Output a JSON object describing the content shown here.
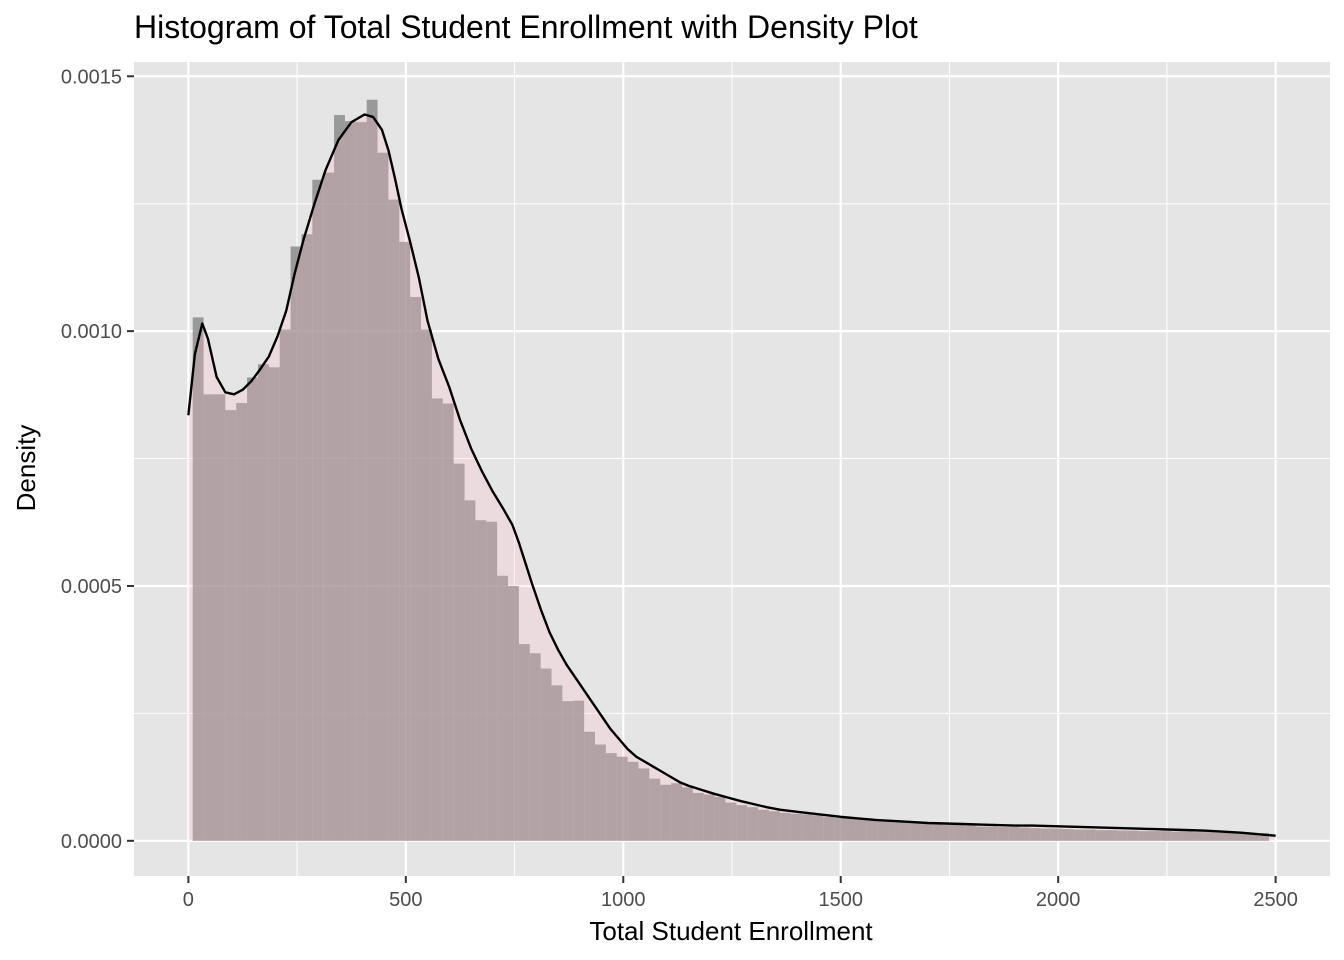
{
  "chart_data": {
    "type": "histogram",
    "title": "Histogram of Total Student Enrollment with Density Plot",
    "xlabel": "Total Student Enrollment",
    "ylabel": "Density",
    "xlim": [
      -125,
      2625
    ],
    "ylim": [
      -6.9e-05,
      0.001528
    ],
    "x_ticks": [
      0,
      500,
      1000,
      1500,
      2000,
      2500
    ],
    "x_tick_labels": [
      "0",
      "500",
      "1000",
      "1500",
      "2000",
      "2500"
    ],
    "y_ticks": [
      0,
      0.0005,
      0.001,
      0.0015
    ],
    "y_tick_labels": [
      "0.0000",
      "0.0005",
      "0.0010",
      "0.0015"
    ],
    "grid": true,
    "legend": "none",
    "colors": {
      "panel_background": "#e5e5e5",
      "grid": "#ffffff",
      "histogram_fill": "#7f7f7f",
      "density_fill": "#ffc0cb",
      "density_line": "#000000"
    },
    "histogram": {
      "binwidth": 25,
      "bin_starts": [
        10,
        35,
        60,
        85,
        110,
        135,
        160,
        185,
        210,
        235,
        260,
        285,
        310,
        335,
        360,
        385,
        410,
        435,
        460,
        485,
        510,
        535,
        560,
        585,
        610,
        635,
        660,
        685,
        710,
        735,
        760,
        785,
        810,
        835,
        860,
        885,
        910,
        935,
        960,
        985,
        1010,
        1035,
        1060,
        1085,
        1110,
        1135,
        1160,
        1185,
        1210,
        1235,
        1260,
        1285,
        1310,
        1335,
        1360,
        1385,
        1410,
        1435,
        1460,
        1485,
        1510,
        1535,
        1560,
        1585,
        1610,
        1635,
        1660,
        1685,
        1710,
        1735,
        1760,
        1785,
        1810,
        1835,
        1860,
        1885,
        1910,
        1935,
        1960,
        1985,
        2010,
        2035,
        2060,
        2085,
        2110,
        2135,
        2160,
        2185,
        2210,
        2235,
        2260,
        2285,
        2310,
        2335,
        2360,
        2385,
        2410,
        2435,
        2460
      ],
      "density": [
        0.001027,
        0.000876,
        0.000876,
        0.000845,
        0.000859,
        0.000909,
        0.000935,
        0.000929,
        0.001003,
        0.001166,
        0.00119,
        0.001297,
        0.001311,
        0.001424,
        0.001412,
        0.00141,
        0.001454,
        0.00135,
        0.001258,
        0.001175,
        0.001067,
        0.001003,
        0.000868,
        0.000858,
        0.00074,
        0.000668,
        0.000629,
        0.000626,
        0.00052,
        0.0005,
        0.000386,
        0.000368,
        0.000338,
        0.000305,
        0.000274,
        0.000275,
        0.000214,
        0.000189,
        0.000172,
        0.000165,
        0.000155,
        0.000142,
        0.000122,
        0.00011,
        0.000113,
        0.000105,
        9.4e-05,
        9.1e-05,
        8.6e-05,
        7.5e-05,
        7e-05,
        6.6e-05,
        6.1e-05,
        5.8e-05,
        5.5e-05,
        5.3e-05,
        5.2e-05,
        5e-05,
        4.7e-05,
        4.5e-05,
        4.4e-05,
        4.3e-05,
        4.2e-05,
        4e-05,
        3.8e-05,
        3.7e-05,
        3.5e-05,
        3.4e-05,
        3.2e-05,
        3.1e-05,
        3.1e-05,
        3e-05,
        2.8e-05,
        2.8e-05,
        2.7e-05,
        2.7e-05,
        2.6e-05,
        2.5e-05,
        2.4e-05,
        2.4e-05,
        2.3e-05,
        2.2e-05,
        2.2e-05,
        2.1e-05,
        2.1e-05,
        2e-05,
        2e-05,
        1.9e-05,
        1.9e-05,
        1.9e-05,
        1.8e-05,
        1.8e-05,
        1.7e-05,
        1.7e-05,
        1.6e-05,
        1.6e-05,
        1.6e-05,
        1.5e-05,
        1.5e-05
      ]
    },
    "density_curve": {
      "x": [
        0,
        15,
        32,
        45,
        65,
        85,
        105,
        125,
        145,
        165,
        185,
        205,
        225,
        245,
        265,
        290,
        315,
        345,
        375,
        405,
        425,
        445,
        460,
        475,
        490,
        510,
        530,
        550,
        575,
        600,
        625,
        650,
        675,
        700,
        725,
        745,
        760,
        775,
        790,
        810,
        830,
        850,
        870,
        890,
        910,
        930,
        950,
        970,
        990,
        1010,
        1030,
        1050,
        1070,
        1090,
        1110,
        1130,
        1150,
        1180,
        1210,
        1240,
        1270,
        1300,
        1330,
        1360,
        1400,
        1440,
        1470,
        1500,
        1540,
        1580,
        1620,
        1660,
        1700,
        1740,
        1780,
        1820,
        1860,
        1900,
        1940,
        1980,
        2020,
        2060,
        2100,
        2140,
        2180,
        2220,
        2260,
        2300,
        2340,
        2380,
        2420,
        2460,
        2500
      ],
      "y": [
        0.000835,
        0.000955,
        0.001015,
        0.000985,
        0.00091,
        0.00088,
        0.000876,
        0.000885,
        0.000902,
        0.000925,
        0.00095,
        0.00099,
        0.00104,
        0.001115,
        0.00118,
        0.00125,
        0.001315,
        0.001375,
        0.00141,
        0.001425,
        0.00142,
        0.001395,
        0.001355,
        0.0013,
        0.00124,
        0.001175,
        0.001105,
        0.00102,
        0.000945,
        0.00089,
        0.000825,
        0.00077,
        0.000725,
        0.000685,
        0.00065,
        0.00062,
        0.000585,
        0.000545,
        0.000505,
        0.000455,
        0.00041,
        0.000375,
        0.000345,
        0.00032,
        0.000295,
        0.00027,
        0.000245,
        0.00022,
        0.0002,
        0.00018,
        0.000165,
        0.000155,
        0.000145,
        0.000135,
        0.000125,
        0.000115,
        0.000108,
        0.0001,
        9.2e-05,
        8.5e-05,
        7.8e-05,
        7.2e-05,
        6.6e-05,
        6.1e-05,
        5.7e-05,
        5.3e-05,
        5e-05,
        4.7e-05,
        4.4e-05,
        4.1e-05,
        3.9e-05,
        3.7e-05,
        3.5e-05,
        3.4e-05,
        3.3e-05,
        3.2e-05,
        3.1e-05,
        3e-05,
        3e-05,
        2.9e-05,
        2.8e-05,
        2.7e-05,
        2.6e-05,
        2.5e-05,
        2.4e-05,
        2.3e-05,
        2.2e-05,
        2.1e-05,
        2e-05,
        1.8e-05,
        1.6e-05,
        1.3e-05,
        1e-05
      ]
    }
  }
}
